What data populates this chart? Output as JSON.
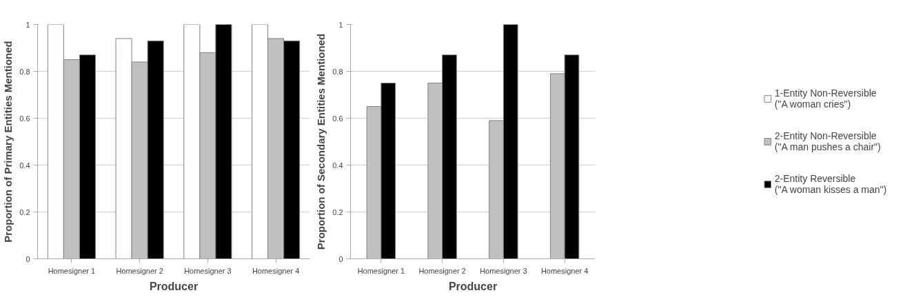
{
  "chart_data": [
    {
      "type": "bar",
      "xlabel": "Producer",
      "ylabel": "Proportion of Primary Entities Mentioned",
      "categories": [
        "Homesigner 1",
        "Homesigner 2",
        "Homesigner 3",
        "Homesigner 4"
      ],
      "ylim": [
        0,
        1
      ],
      "yticks": [
        0,
        0.2,
        0.4,
        0.6,
        0.8,
        1
      ],
      "grid": "y",
      "legend": false,
      "series": [
        {
          "color": "#ffffff",
          "values": [
            1,
            0.94,
            1,
            1
          ]
        },
        {
          "color": "#c0c0c0",
          "values": [
            0.85,
            0.84,
            0.88,
            0.94
          ]
        },
        {
          "color": "#000000",
          "values": [
            0.87,
            0.93,
            1,
            0.93
          ]
        }
      ]
    },
    {
      "type": "bar",
      "xlabel": "Producer",
      "ylabel": "Proportion of Secondary Entities Mentioned",
      "categories": [
        "Homesigner 1",
        "Homesigner 2",
        "Homesigner 3",
        "Homesigner 4"
      ],
      "ylim": [
        0,
        1
      ],
      "yticks": [
        0,
        0.2,
        0.4,
        0.6,
        0.8,
        1
      ],
      "grid": "y",
      "legend": "right",
      "series": [
        {
          "name": "1-Entity Non-Reversible\n(\"A woman cries\")",
          "color": "#ffffff",
          "values": [
            null,
            null,
            null,
            null
          ]
        },
        {
          "name": "2-Entity Non-Reversible\n(\"A man pushes a chair\")",
          "color": "#c0c0c0",
          "values": [
            0.65,
            0.75,
            0.59,
            0.79
          ]
        },
        {
          "name": "2-Entity Reversible\n(\"A woman kisses a man\")",
          "color": "#000000",
          "values": [
            0.75,
            0.87,
            1,
            0.87
          ]
        }
      ]
    }
  ]
}
